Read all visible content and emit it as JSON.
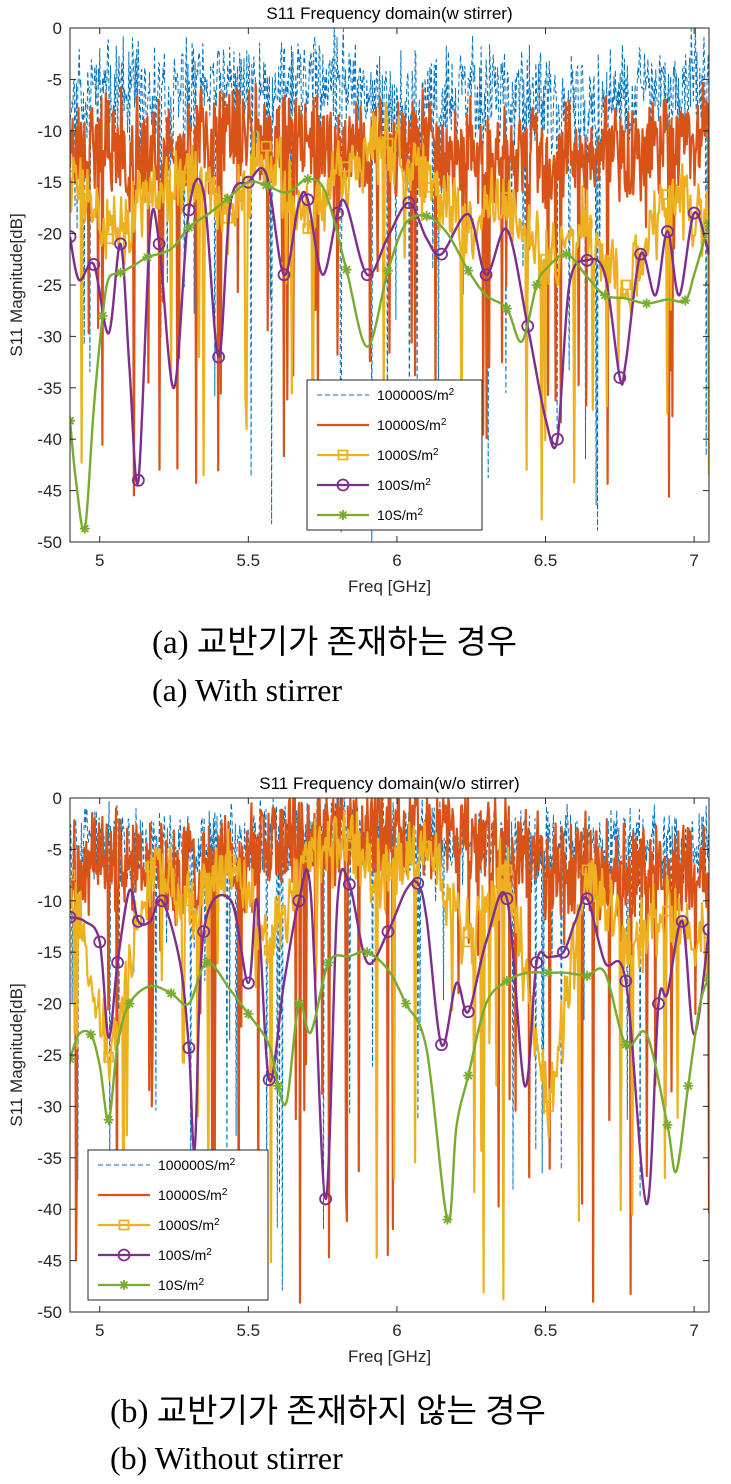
{
  "chart_data": [
    {
      "type": "line",
      "title": "S11 Frequency domain(w stirrer)",
      "xlabel": "Freq [GHz]",
      "ylabel": "S11 Magnitude[dB]",
      "xlim": [
        4.9,
        7.05
      ],
      "ylim": [
        -50,
        0
      ],
      "xticks": [
        5,
        5.5,
        6,
        6.5,
        7
      ],
      "yticks": [
        0,
        -5,
        -10,
        -15,
        -20,
        -25,
        -30,
        -35,
        -40,
        -45,
        -50
      ],
      "grid": false,
      "legend_position": "lower-center",
      "series": [
        {
          "name": "100000S/m",
          "style": "dashed",
          "color": "#0072BD",
          "marker": "none",
          "base": -8,
          "amp": 4,
          "dips": 0.05,
          "depth": -50,
          "seed": 11,
          "npts": 900,
          "points": [
            [
              4.92,
              -6
            ],
            [
              5.2,
              -7
            ],
            [
              5.5,
              -6
            ],
            [
              5.8,
              -5
            ],
            [
              6.0,
              -8
            ],
            [
              6.3,
              -6
            ],
            [
              6.6,
              -8
            ],
            [
              6.9,
              -6
            ],
            [
              7.03,
              -5
            ]
          ]
        },
        {
          "name": "10000S/m",
          "style": "solid",
          "color": "#D95319",
          "marker": "none",
          "base": -12,
          "amp": 4,
          "dips": 0.07,
          "depth": -46,
          "seed": 23,
          "npts": 750,
          "points": [
            [
              4.95,
              -11
            ],
            [
              5.2,
              -12
            ],
            [
              5.5,
              -10
            ],
            [
              5.8,
              -12
            ],
            [
              6.1,
              -11
            ],
            [
              6.4,
              -13
            ],
            [
              6.7,
              -12
            ],
            [
              7.0,
              -10
            ]
          ]
        },
        {
          "name": "1000S/m",
          "style": "solid",
          "color": "#EDB120",
          "marker": "square",
          "base": -16,
          "amp": 3,
          "dips": 0.06,
          "depth": -48,
          "seed": 37,
          "npts": 550,
          "points": [
            [
              4.9,
              -13.5
            ],
            [
              5.03,
              -20.5
            ],
            [
              5.16,
              -16.5
            ],
            [
              5.3,
              -14.5
            ],
            [
              5.43,
              -18.5
            ],
            [
              5.56,
              -11.5
            ],
            [
              5.7,
              -19.5
            ],
            [
              5.83,
              -13.5
            ],
            [
              5.97,
              -11.2
            ],
            [
              6.1,
              -15.5
            ],
            [
              6.24,
              -19
            ],
            [
              6.37,
              -16.5
            ],
            [
              6.5,
              -22.5
            ],
            [
              6.64,
              -19
            ],
            [
              6.77,
              -25
            ],
            [
              6.91,
              -16.2
            ],
            [
              7.05,
              -19
            ]
          ]
        },
        {
          "name": "100S/m",
          "style": "solid",
          "color": "#7E2F8E",
          "marker": "circle",
          "points": [
            [
              4.9,
              -20.3
            ],
            [
              4.93,
              -24.5
            ],
            [
              4.98,
              -23
            ],
            [
              5.03,
              -29.7
            ],
            [
              5.07,
              -21
            ],
            [
              5.1,
              -33
            ],
            [
              5.13,
              -44
            ],
            [
              5.17,
              -19.5
            ],
            [
              5.2,
              -21
            ],
            [
              5.25,
              -35
            ],
            [
              5.3,
              -17.7
            ],
            [
              5.35,
              -16
            ],
            [
              5.4,
              -32
            ],
            [
              5.44,
              -17
            ],
            [
              5.5,
              -15
            ],
            [
              5.56,
              -14.2
            ],
            [
              5.62,
              -24
            ],
            [
              5.67,
              -17
            ],
            [
              5.7,
              -16.7
            ],
            [
              5.75,
              -24
            ],
            [
              5.8,
              -18
            ],
            [
              5.83,
              -17.2
            ],
            [
              5.9,
              -24
            ],
            [
              5.97,
              -20.3
            ],
            [
              6.04,
              -17
            ],
            [
              6.1,
              -20.5
            ],
            [
              6.15,
              -22
            ],
            [
              6.24,
              -18.1
            ],
            [
              6.3,
              -24
            ],
            [
              6.37,
              -19.6
            ],
            [
              6.44,
              -29
            ],
            [
              6.5,
              -38
            ],
            [
              6.54,
              -40
            ],
            [
              6.58,
              -25
            ],
            [
              6.64,
              -22.6
            ],
            [
              6.7,
              -24
            ],
            [
              6.75,
              -34
            ],
            [
              6.77,
              -32.5
            ],
            [
              6.82,
              -22
            ],
            [
              6.87,
              -26
            ],
            [
              6.91,
              -19.8
            ],
            [
              6.95,
              -26
            ],
            [
              7.0,
              -18
            ],
            [
              7.05,
              -22
            ]
          ]
        },
        {
          "name": "10S/m",
          "style": "solid",
          "color": "#77AC30",
          "marker": "asterisk",
          "points": [
            [
              4.9,
              -38.2
            ],
            [
              4.92,
              -44
            ],
            [
              4.95,
              -48.7
            ],
            [
              4.98,
              -37
            ],
            [
              5.01,
              -28
            ],
            [
              5.03,
              -24.4
            ],
            [
              5.07,
              -23.8
            ],
            [
              5.12,
              -23
            ],
            [
              5.16,
              -22.3
            ],
            [
              5.24,
              -21.5
            ],
            [
              5.3,
              -19.4
            ],
            [
              5.37,
              -18
            ],
            [
              5.43,
              -16.6
            ],
            [
              5.5,
              -15
            ],
            [
              5.56,
              -15.3
            ],
            [
              5.63,
              -16
            ],
            [
              5.7,
              -14.7
            ],
            [
              5.76,
              -16
            ],
            [
              5.83,
              -23.5
            ],
            [
              5.9,
              -31
            ],
            [
              5.97,
              -23.6
            ],
            [
              6.03,
              -19
            ],
            [
              6.1,
              -18.3
            ],
            [
              6.17,
              -20
            ],
            [
              6.24,
              -23.6
            ],
            [
              6.3,
              -26
            ],
            [
              6.37,
              -27.3
            ],
            [
              6.42,
              -30.5
            ],
            [
              6.47,
              -25
            ],
            [
              6.5,
              -23.5
            ],
            [
              6.57,
              -22
            ],
            [
              6.64,
              -24.2
            ],
            [
              6.7,
              -26
            ],
            [
              6.77,
              -26.3
            ],
            [
              6.84,
              -26.8
            ],
            [
              6.91,
              -26.4
            ],
            [
              6.97,
              -26.5
            ],
            [
              7.0,
              -24
            ],
            [
              7.05,
              -19
            ]
          ]
        }
      ]
    },
    {
      "type": "line",
      "title": "S11 Frequency domain(w/o stirrer)",
      "xlabel": "Freq [GHz]",
      "ylabel": "S11 Magnitude[dB]",
      "xlim": [
        4.9,
        7.05
      ],
      "ylim": [
        -50,
        0
      ],
      "xticks": [
        5,
        5.5,
        6,
        6.5,
        7
      ],
      "yticks": [
        0,
        -5,
        -10,
        -15,
        -20,
        -25,
        -30,
        -35,
        -40,
        -45,
        -50
      ],
      "grid": false,
      "legend_position": "lower-left",
      "series": [
        {
          "name": "100000S/m",
          "style": "dashed",
          "color": "#0072BD",
          "marker": "none",
          "base": -5,
          "amp": 3,
          "dips": 0.05,
          "depth": -48,
          "seed": 53,
          "npts": 900,
          "points": [
            [
              4.92,
              -4
            ],
            [
              5.2,
              -5
            ],
            [
              5.5,
              -4
            ],
            [
              5.8,
              -3
            ],
            [
              6.1,
              -4
            ],
            [
              6.4,
              -5
            ],
            [
              6.7,
              -4
            ],
            [
              7.0,
              -5
            ]
          ]
        },
        {
          "name": "10000S/m",
          "style": "solid",
          "color": "#D95319",
          "marker": "none",
          "base": -7,
          "amp": 4,
          "dips": 0.07,
          "depth": -50,
          "seed": 67,
          "npts": 750,
          "points": [
            [
              4.95,
              -6
            ],
            [
              5.2,
              -7
            ],
            [
              5.5,
              -6
            ],
            [
              5.8,
              -3
            ],
            [
              6.1,
              -2
            ],
            [
              6.4,
              -6
            ],
            [
              6.7,
              -7
            ],
            [
              7.0,
              -8
            ]
          ]
        },
        {
          "name": "1000S/m",
          "style": "solid",
          "color": "#EDB120",
          "marker": "square",
          "base": -9,
          "amp": 3,
          "dips": 0.05,
          "depth": -50,
          "seed": 79,
          "npts": 550,
          "points": [
            [
              4.9,
              -7.5
            ],
            [
              5.03,
              -25.2
            ],
            [
              5.17,
              -6.7
            ],
            [
              5.3,
              -10
            ],
            [
              5.44,
              -6
            ],
            [
              5.57,
              -14.8
            ],
            [
              5.7,
              -5.7
            ],
            [
              5.84,
              -4.6
            ],
            [
              5.97,
              -7.5
            ],
            [
              6.1,
              -4.7
            ],
            [
              6.24,
              -14
            ],
            [
              6.37,
              -7
            ],
            [
              6.51,
              -30
            ],
            [
              6.64,
              -7
            ],
            [
              6.77,
              -14.5
            ],
            [
              6.91,
              -11
            ],
            [
              7.05,
              -14
            ]
          ]
        },
        {
          "name": "100S/m",
          "style": "solid",
          "color": "#7E2F8E",
          "marker": "circle",
          "points": [
            [
              4.9,
              -11.6
            ],
            [
              4.95,
              -12
            ],
            [
              5.0,
              -14
            ],
            [
              5.03,
              -23.3
            ],
            [
              5.06,
              -16
            ],
            [
              5.1,
              -9
            ],
            [
              5.13,
              -12
            ],
            [
              5.17,
              -12
            ],
            [
              5.21,
              -10
            ],
            [
              5.27,
              -16
            ],
            [
              5.3,
              -24.3
            ],
            [
              5.32,
              -34
            ],
            [
              5.35,
              -13
            ],
            [
              5.44,
              -9.9
            ],
            [
              5.5,
              -18
            ],
            [
              5.53,
              -10
            ],
            [
              5.57,
              -27.4
            ],
            [
              5.62,
              -18
            ],
            [
              5.67,
              -10
            ],
            [
              5.71,
              -9.2
            ],
            [
              5.76,
              -39
            ],
            [
              5.8,
              -10
            ],
            [
              5.84,
              -8.4
            ],
            [
              5.9,
              -16
            ],
            [
              5.97,
              -13
            ],
            [
              6.03,
              -9
            ],
            [
              6.07,
              -8.3
            ],
            [
              6.1,
              -11.8
            ],
            [
              6.15,
              -24
            ],
            [
              6.2,
              -18
            ],
            [
              6.24,
              -20.8
            ],
            [
              6.3,
              -14
            ],
            [
              6.37,
              -9.8
            ],
            [
              6.43,
              -28
            ],
            [
              6.47,
              -16
            ],
            [
              6.51,
              -15.5
            ],
            [
              6.56,
              -15
            ],
            [
              6.6,
              -12
            ],
            [
              6.64,
              -9.8
            ],
            [
              6.7,
              -16
            ],
            [
              6.77,
              -17.8
            ],
            [
              6.84,
              -39.5
            ],
            [
              6.88,
              -20
            ],
            [
              6.91,
              -19
            ],
            [
              6.96,
              -12
            ],
            [
              7.0,
              -23
            ],
            [
              7.05,
              -12.8
            ]
          ]
        },
        {
          "name": "10S/m",
          "style": "solid",
          "color": "#77AC30",
          "marker": "asterisk",
          "points": [
            [
              4.9,
              -25.4
            ],
            [
              4.93,
              -23
            ],
            [
              4.97,
              -23
            ],
            [
              5.0,
              -26
            ],
            [
              5.03,
              -31.3
            ],
            [
              5.06,
              -24
            ],
            [
              5.1,
              -20
            ],
            [
              5.17,
              -18.3
            ],
            [
              5.24,
              -19
            ],
            [
              5.3,
              -20
            ],
            [
              5.36,
              -16
            ],
            [
              5.44,
              -18.7
            ],
            [
              5.5,
              -21
            ],
            [
              5.57,
              -24
            ],
            [
              5.6,
              -28
            ],
            [
              5.63,
              -29.4
            ],
            [
              5.67,
              -20
            ],
            [
              5.71,
              -22.8
            ],
            [
              5.77,
              -16
            ],
            [
              5.84,
              -15.4
            ],
            [
              5.9,
              -15
            ],
            [
              5.97,
              -16.7
            ],
            [
              6.03,
              -20
            ],
            [
              6.1,
              -24.5
            ],
            [
              6.17,
              -41
            ],
            [
              6.2,
              -32
            ],
            [
              6.24,
              -27
            ],
            [
              6.3,
              -20
            ],
            [
              6.37,
              -17.8
            ],
            [
              6.44,
              -17
            ],
            [
              6.51,
              -17
            ],
            [
              6.57,
              -17
            ],
            [
              6.64,
              -17.3
            ],
            [
              6.7,
              -17
            ],
            [
              6.77,
              -24
            ],
            [
              6.84,
              -23
            ],
            [
              6.91,
              -31.8
            ],
            [
              6.94,
              -36.3
            ],
            [
              6.98,
              -28
            ],
            [
              7.02,
              -20
            ],
            [
              7.05,
              -17.5
            ]
          ]
        }
      ]
    }
  ],
  "captions": {
    "a_korean": "(a) 교반기가 존재하는 경우",
    "a_english": "(a)  With  stirrer",
    "b_korean": "(b) 교반기가 존재하지 않는 경우",
    "b_english": "(b)  Without  stirrer"
  }
}
